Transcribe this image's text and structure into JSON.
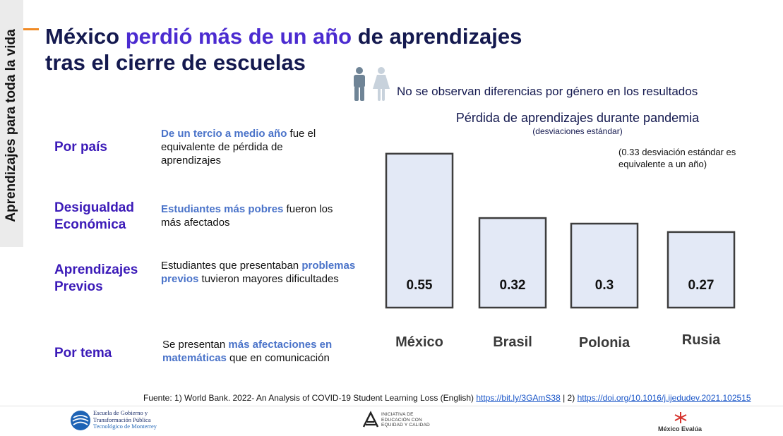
{
  "side_banner": "Aprendizajes para toda la vida",
  "title": {
    "line1_a": "México ",
    "line1_hl": "perdió más de un año",
    "line1_b": " de aprendizajes",
    "line2": "tras el cierre de escuelas"
  },
  "gender_note": "No se observan diferencias por género en los resultados",
  "categories": [
    {
      "label1": "Por país",
      "label2": "",
      "pre": "",
      "em": "De un tercio a medio año",
      "post": " fue el equivalente de pérdida de aprendizajes"
    },
    {
      "label1": "Desigualdad",
      "label2": "Económica",
      "pre": "",
      "em": "Estudiantes más pobres",
      "post": " fueron los más afectados"
    },
    {
      "label1": "Aprendizajes",
      "label2": "Previos",
      "pre": "Estudiantes que presentaban ",
      "em": "problemas previos",
      "post": " tuvieron mayores dificultades"
    },
    {
      "label1": "Por tema",
      "label2": "",
      "pre": "Se presentan ",
      "em": "más afectaciones en matemáticas",
      "post": " que en comunicación"
    }
  ],
  "chart_data": {
    "type": "bar",
    "title": "Pérdida de aprendizajes durante pandemia",
    "subtitle": "(desviaciones estándar)",
    "note": "(0.33 desviación estándar es equivalente a un año)",
    "categories": [
      "México",
      "Brasil",
      "Polonia",
      "Rusia"
    ],
    "values": [
      0.55,
      0.32,
      0.3,
      0.27
    ],
    "value_labels": [
      "0.55",
      "0.32",
      "0.3",
      "0.27"
    ],
    "ylim": [
      0,
      0.6
    ],
    "grid": false,
    "bar_fill": "#e3e9f6",
    "bar_stroke": "#3d3d3d"
  },
  "source": {
    "text": "Fuente: 1) World Bank. 2022- An Analysis of COVID-19 Student Learning Loss (English) ",
    "link1": "https://bit.ly/3GAmS38",
    "sep": " | 2) ",
    "link2": "https://doi.org/10.1016/j.ijedudev.2021.102515"
  },
  "logos": {
    "egt_line1": "Escuela de Gobierno y",
    "egt_line2": "Transformación Pública",
    "egt_line3": "Tecnológico de Monterrey",
    "edu_line1": "INICIATIVA DE",
    "edu_line2": "EDUCACIÓN CON",
    "edu_line3": "EQUIDAD Y CALIDAD",
    "me": "México Evalúa"
  },
  "colors": {
    "title_dark": "#14194f",
    "title_highlight": "#4b2bd0",
    "category_purple": "#3b1ab8",
    "emphasis_blue": "#4a73c9",
    "accent_orange": "#f08a24"
  },
  "icons": [
    "male-figure-icon",
    "female-figure-icon",
    "egt-logo-icon",
    "edu-logo-icon",
    "mexico-evalua-logo-icon"
  ]
}
